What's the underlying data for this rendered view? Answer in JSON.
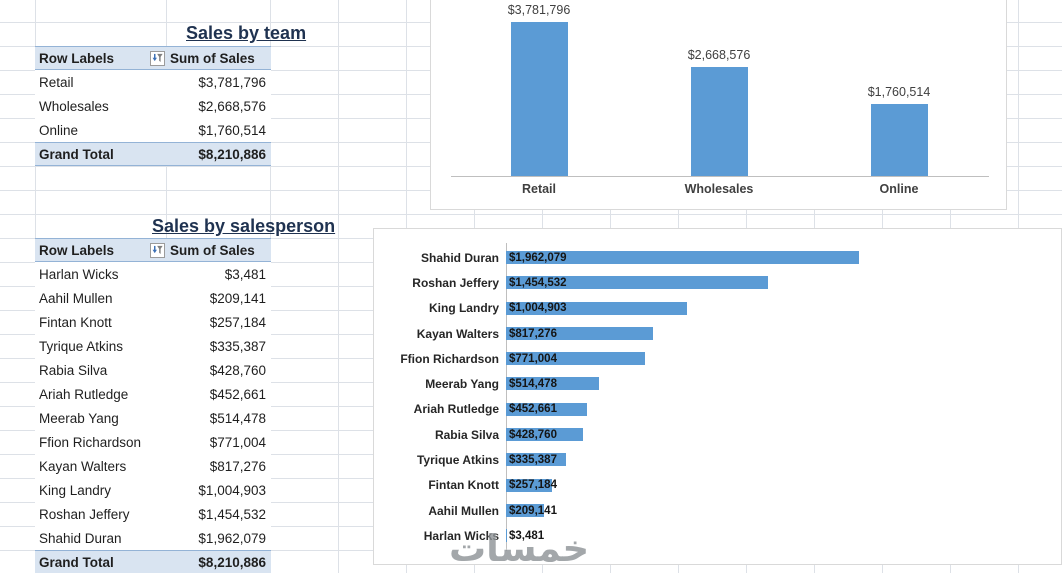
{
  "titles": {
    "team": "Sales by team",
    "salesperson": "Sales by salesperson"
  },
  "pivot_headers": {
    "row_labels": "Row Labels",
    "sum_of_sales": "Sum of Sales"
  },
  "team_table": {
    "rows": [
      {
        "label": "Retail",
        "value": "$3,781,796"
      },
      {
        "label": "Wholesales",
        "value": "$2,668,576"
      },
      {
        "label": "Online",
        "value": "$1,760,514"
      }
    ],
    "grand_total": {
      "label": "Grand Total",
      "value": "$8,210,886"
    }
  },
  "person_table": {
    "rows": [
      {
        "label": "Harlan Wicks",
        "value": "$3,481"
      },
      {
        "label": "Aahil Mullen",
        "value": "$209,141"
      },
      {
        "label": "Fintan Knott",
        "value": "$257,184"
      },
      {
        "label": "Tyrique Atkins",
        "value": "$335,387"
      },
      {
        "label": "Rabia Silva",
        "value": "$428,760"
      },
      {
        "label": "Ariah Rutledge",
        "value": "$452,661"
      },
      {
        "label": "Meerab Yang",
        "value": "$514,478"
      },
      {
        "label": "Ffion Richardson",
        "value": "$771,004"
      },
      {
        "label": "Kayan Walters",
        "value": "$817,276"
      },
      {
        "label": "King Landry",
        "value": "$1,004,903"
      },
      {
        "label": "Roshan Jeffery",
        "value": "$1,454,532"
      },
      {
        "label": "Shahid Duran",
        "value": "$1,962,079"
      }
    ],
    "grand_total": {
      "label": "Grand Total",
      "value": "$8,210,886"
    }
  },
  "chart_data": [
    {
      "type": "bar",
      "orientation": "vertical",
      "title": "",
      "categories": [
        "Retail",
        "Wholesales",
        "Online"
      ],
      "values": [
        3781796,
        2668576,
        1760514
      ],
      "data_labels": [
        "$3,781,796",
        "$2,668,576",
        "$1,760,514"
      ],
      "ylim": [
        0,
        4000000
      ],
      "bar_color": "#5B9BD5",
      "legend": false,
      "grid": false
    },
    {
      "type": "bar",
      "orientation": "horizontal",
      "title": "",
      "categories": [
        "Shahid Duran",
        "Roshan Jeffery",
        "King Landry",
        "Kayan Walters",
        "Ffion Richardson",
        "Meerab Yang",
        "Ariah Rutledge",
        "Rabia Silva",
        "Tyrique Atkins",
        "Fintan Knott",
        "Aahil Mullen",
        "Harlan Wicks"
      ],
      "values": [
        1962079,
        1454532,
        1004903,
        817276,
        771004,
        514478,
        452661,
        428760,
        335387,
        257184,
        209141,
        3481
      ],
      "data_labels": [
        "$1,962,079",
        "$1,454,532",
        "$1,004,903",
        "$817,276",
        "$771,004",
        "$514,478",
        "$452,661",
        "$428,760",
        "$335,387",
        "$257,184",
        "$209,141",
        "$3,481"
      ],
      "xlim": [
        0,
        2000000
      ],
      "bar_color": "#5B9BD5",
      "legend": false,
      "grid": false
    }
  ],
  "watermark": "خمسات",
  "colors": {
    "bar_blue": "#5B9BD5",
    "header_fill": "#D9E4F1",
    "header_border": "#94B3D6",
    "gridline": "#DDE1E7",
    "axis": "#BFBFBF"
  }
}
